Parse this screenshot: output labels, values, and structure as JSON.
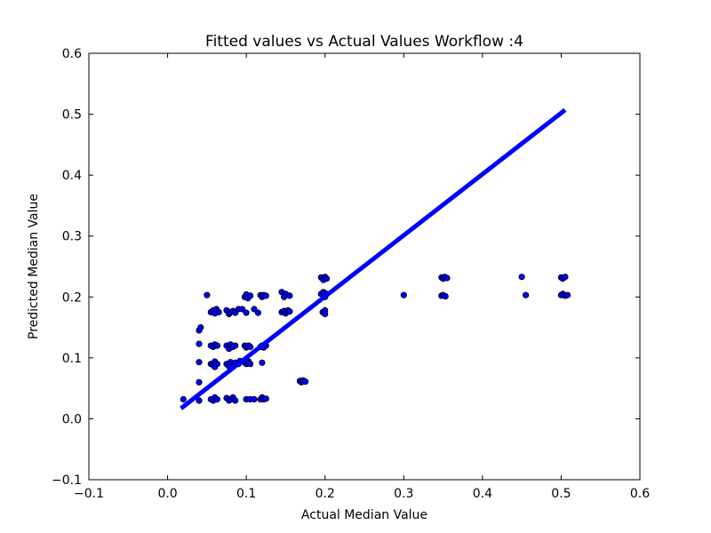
{
  "chart_data": {
    "type": "scatter",
    "title": "Fitted values vs Actual Values Workflow :4",
    "xlabel": "Actual Median Value",
    "ylabel": "Predicted Median Value",
    "xlim": [
      -0.1,
      0.6
    ],
    "ylim": [
      -0.1,
      0.6
    ],
    "xticks": [
      "−0.1",
      "0.0",
      "0.1",
      "0.2",
      "0.3",
      "0.4",
      "0.5",
      "0.6"
    ],
    "yticks": [
      "−0.1",
      "0.0",
      "0.1",
      "0.2",
      "0.3",
      "0.4",
      "0.5",
      "0.6"
    ],
    "xtick_values": [
      -0.1,
      0.0,
      0.1,
      0.2,
      0.3,
      0.4,
      0.5,
      0.6
    ],
    "ytick_values": [
      -0.1,
      0.0,
      0.1,
      0.2,
      0.3,
      0.4,
      0.5,
      0.6
    ],
    "grid": false,
    "marker_color": "#0000ff",
    "marker_edge_color": "#000000",
    "line_color": "#0000ff",
    "fit_line": {
      "x": [
        0.017,
        0.505
      ],
      "y": [
        0.017,
        0.507
      ]
    },
    "points": [
      [
        0.02,
        0.032
      ],
      [
        0.04,
        0.03
      ],
      [
        0.04,
        0.06
      ],
      [
        0.04,
        0.093
      ],
      [
        0.04,
        0.123
      ],
      [
        0.04,
        0.145
      ],
      [
        0.042,
        0.15
      ],
      [
        0.05,
        0.203
      ],
      [
        0.055,
        0.175
      ],
      [
        0.058,
        0.178
      ],
      [
        0.06,
        0.173
      ],
      [
        0.062,
        0.18
      ],
      [
        0.065,
        0.175
      ],
      [
        0.055,
        0.12
      ],
      [
        0.058,
        0.118
      ],
      [
        0.06,
        0.122
      ],
      [
        0.063,
        0.12
      ],
      [
        0.055,
        0.09
      ],
      [
        0.058,
        0.088
      ],
      [
        0.06,
        0.094
      ],
      [
        0.063,
        0.09
      ],
      [
        0.06,
        0.085
      ],
      [
        0.055,
        0.032
      ],
      [
        0.058,
        0.03
      ],
      [
        0.06,
        0.035
      ],
      [
        0.063,
        0.032
      ],
      [
        0.075,
        0.178
      ],
      [
        0.078,
        0.172
      ],
      [
        0.08,
        0.175
      ],
      [
        0.083,
        0.177
      ],
      [
        0.086,
        0.174
      ],
      [
        0.09,
        0.18
      ],
      [
        0.095,
        0.18
      ],
      [
        0.1,
        0.174
      ],
      [
        0.11,
        0.18
      ],
      [
        0.115,
        0.174
      ],
      [
        0.075,
        0.12
      ],
      [
        0.078,
        0.115
      ],
      [
        0.08,
        0.122
      ],
      [
        0.083,
        0.118
      ],
      [
        0.086,
        0.12
      ],
      [
        0.075,
        0.09
      ],
      [
        0.078,
        0.086
      ],
      [
        0.08,
        0.093
      ],
      [
        0.083,
        0.088
      ],
      [
        0.086,
        0.092
      ],
      [
        0.09,
        0.09
      ],
      [
        0.092,
        0.095
      ],
      [
        0.075,
        0.034
      ],
      [
        0.078,
        0.03
      ],
      [
        0.08,
        0.032
      ],
      [
        0.083,
        0.035
      ],
      [
        0.086,
        0.03
      ],
      [
        0.098,
        0.2
      ],
      [
        0.1,
        0.204
      ],
      [
        0.102,
        0.198
      ],
      [
        0.105,
        0.202
      ],
      [
        0.098,
        0.12
      ],
      [
        0.1,
        0.117
      ],
      [
        0.103,
        0.12
      ],
      [
        0.105,
        0.118
      ],
      [
        0.098,
        0.092
      ],
      [
        0.1,
        0.09
      ],
      [
        0.103,
        0.094
      ],
      [
        0.105,
        0.09
      ],
      [
        0.1,
        0.032
      ],
      [
        0.105,
        0.032
      ],
      [
        0.11,
        0.032
      ],
      [
        0.118,
        0.203
      ],
      [
        0.12,
        0.2
      ],
      [
        0.122,
        0.203
      ],
      [
        0.125,
        0.202
      ],
      [
        0.118,
        0.118
      ],
      [
        0.12,
        0.12
      ],
      [
        0.122,
        0.117
      ],
      [
        0.125,
        0.12
      ],
      [
        0.12,
        0.092
      ],
      [
        0.118,
        0.032
      ],
      [
        0.12,
        0.035
      ],
      [
        0.122,
        0.032
      ],
      [
        0.125,
        0.033
      ],
      [
        0.145,
        0.208
      ],
      [
        0.15,
        0.205
      ],
      [
        0.148,
        0.2
      ],
      [
        0.155,
        0.202
      ],
      [
        0.145,
        0.175
      ],
      [
        0.148,
        0.177
      ],
      [
        0.15,
        0.173
      ],
      [
        0.153,
        0.178
      ],
      [
        0.155,
        0.176
      ],
      [
        0.168,
        0.062
      ],
      [
        0.17,
        0.06
      ],
      [
        0.172,
        0.063
      ],
      [
        0.175,
        0.061
      ],
      [
        0.195,
        0.232
      ],
      [
        0.198,
        0.228
      ],
      [
        0.2,
        0.233
      ],
      [
        0.202,
        0.23
      ],
      [
        0.195,
        0.205
      ],
      [
        0.198,
        0.208
      ],
      [
        0.2,
        0.2
      ],
      [
        0.202,
        0.205
      ],
      [
        0.197,
        0.175
      ],
      [
        0.2,
        0.178
      ],
      [
        0.2,
        0.172
      ],
      [
        0.3,
        0.203
      ],
      [
        0.348,
        0.232
      ],
      [
        0.35,
        0.23
      ],
      [
        0.352,
        0.233
      ],
      [
        0.355,
        0.231
      ],
      [
        0.348,
        0.202
      ],
      [
        0.35,
        0.203
      ],
      [
        0.353,
        0.201
      ],
      [
        0.45,
        0.233
      ],
      [
        0.455,
        0.203
      ],
      [
        0.5,
        0.232
      ],
      [
        0.502,
        0.23
      ],
      [
        0.505,
        0.233
      ],
      [
        0.5,
        0.203
      ],
      [
        0.502,
        0.205
      ],
      [
        0.505,
        0.202
      ],
      [
        0.508,
        0.203
      ]
    ]
  }
}
